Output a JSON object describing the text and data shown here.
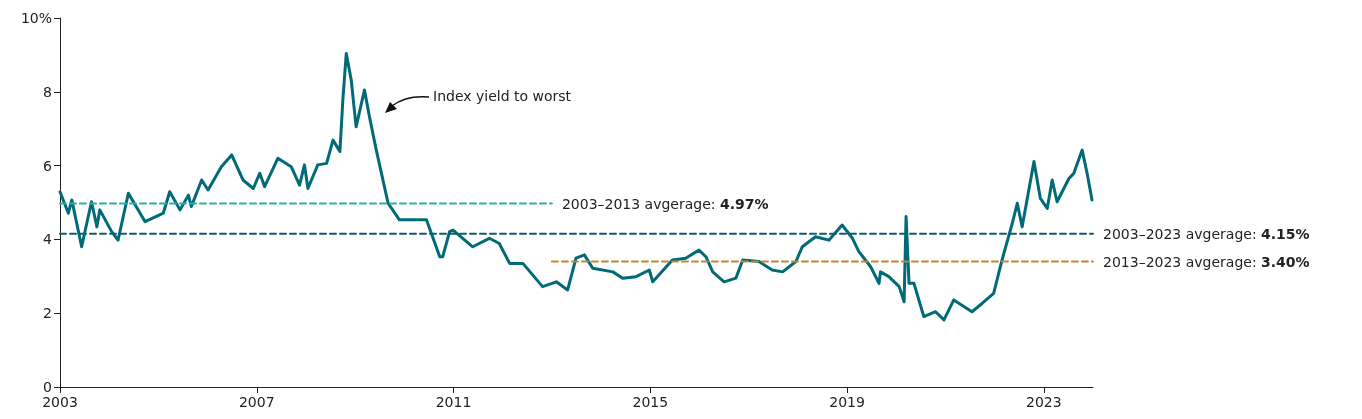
{
  "chart_data": {
    "type": "line",
    "xlim": [
      2003,
      2024
    ],
    "xticks": [
      2003,
      2007,
      2011,
      2015,
      2019,
      2023
    ],
    "ylim": [
      0,
      10
    ],
    "yticks": [
      0,
      2,
      4,
      6,
      {
        "value": 10,
        "label": "10%"
      },
      8
    ],
    "grid": false,
    "legend": false,
    "marker": "none",
    "annotations": [
      "Index yield to worst"
    ],
    "series": [
      {
        "color": "#006b77",
        "line_style": "solid",
        "x": [
          2003.0,
          2003.17,
          2003.24,
          2003.44,
          2003.64,
          2003.75,
          2003.81,
          2004.05,
          2004.18,
          2004.39,
          2004.73,
          2005.1,
          2005.23,
          2005.44,
          2005.61,
          2005.67,
          2005.88,
          2006.01,
          2006.28,
          2006.49,
          2006.72,
          2006.93,
          2007.06,
          2007.16,
          2007.43,
          2007.7,
          2007.87,
          2007.97,
          2008.04,
          2008.24,
          2008.42,
          2008.55,
          2008.69,
          2008.75,
          2008.82,
          2008.92,
          2009.02,
          2009.19,
          2009.29,
          2009.43,
          2009.67,
          2009.9,
          2010.45,
          2010.72,
          2010.78,
          2010.92,
          2010.99,
          2011.39,
          2011.73,
          2011.93,
          2012.14,
          2012.41,
          2012.81,
          2013.09,
          2013.32,
          2013.49,
          2013.66,
          2013.83,
          2014.24,
          2014.44,
          2014.71,
          2014.98,
          2015.05,
          2015.45,
          2015.72,
          2015.99,
          2016.13,
          2016.27,
          2016.5,
          2016.74,
          2016.88,
          2017.21,
          2017.48,
          2017.69,
          2017.96,
          2018.09,
          2018.36,
          2018.63,
          2018.9,
          2019.11,
          2019.24,
          2019.48,
          2019.65,
          2019.68,
          2019.85,
          2020.06,
          2020.16,
          2020.2,
          2020.26,
          2020.36,
          2020.56,
          2020.8,
          2020.97,
          2021.17,
          2021.54,
          2021.75,
          2021.98,
          2022.15,
          2022.36,
          2022.46,
          2022.56,
          2022.8,
          2022.93,
          2023.07,
          2023.17,
          2023.27,
          2023.51,
          2023.61,
          2023.78,
          2023.88,
          2023.98
        ],
        "values": [
          5.29,
          4.71,
          5.07,
          3.8,
          5.02,
          4.34,
          4.8,
          4.21,
          3.98,
          5.25,
          4.48,
          4.71,
          5.29,
          4.8,
          5.2,
          4.89,
          5.61,
          5.34,
          5.97,
          6.29,
          5.61,
          5.38,
          5.79,
          5.43,
          6.2,
          5.97,
          5.47,
          6.02,
          5.38,
          6.02,
          6.06,
          6.69,
          6.38,
          7.78,
          9.04,
          8.32,
          7.05,
          8.05,
          7.33,
          6.42,
          4.98,
          4.53,
          4.53,
          3.53,
          3.53,
          4.21,
          4.25,
          3.8,
          4.03,
          3.89,
          3.35,
          3.35,
          2.72,
          2.85,
          2.63,
          3.49,
          3.58,
          3.22,
          3.12,
          2.95,
          2.99,
          3.17,
          2.85,
          3.44,
          3.49,
          3.71,
          3.53,
          3.12,
          2.85,
          2.95,
          3.44,
          3.4,
          3.17,
          3.12,
          3.4,
          3.8,
          4.07,
          3.98,
          4.39,
          4.03,
          3.67,
          3.26,
          2.81,
          3.12,
          2.99,
          2.72,
          2.31,
          4.62,
          2.81,
          2.81,
          1.91,
          2.04,
          1.82,
          2.36,
          2.04,
          2.27,
          2.54,
          3.44,
          4.44,
          4.98,
          4.34,
          6.11,
          5.11,
          4.84,
          5.61,
          5.02,
          5.65,
          5.79,
          6.42,
          5.79,
          5.07
        ]
      },
      {
        "name": "2003–2013 avgerage: 4.97%",
        "color": "#2ab0a8",
        "line_style": "dashed",
        "x": [
          2003,
          2013
        ],
        "values": [
          4.97,
          4.97
        ]
      },
      {
        "name": "2003–2023 avgerage: 4.15%",
        "color": "#0d5e6e",
        "line_style": "dashed",
        "x": [
          2003,
          2024
        ],
        "values": [
          4.15,
          4.15
        ]
      },
      {
        "name": "2013–2023 avgerage: 3.40%",
        "color": "#c8862a",
        "line_style": "dashed",
        "x": [
          2013,
          2024
        ],
        "values": [
          3.4,
          3.4
        ]
      }
    ]
  }
}
